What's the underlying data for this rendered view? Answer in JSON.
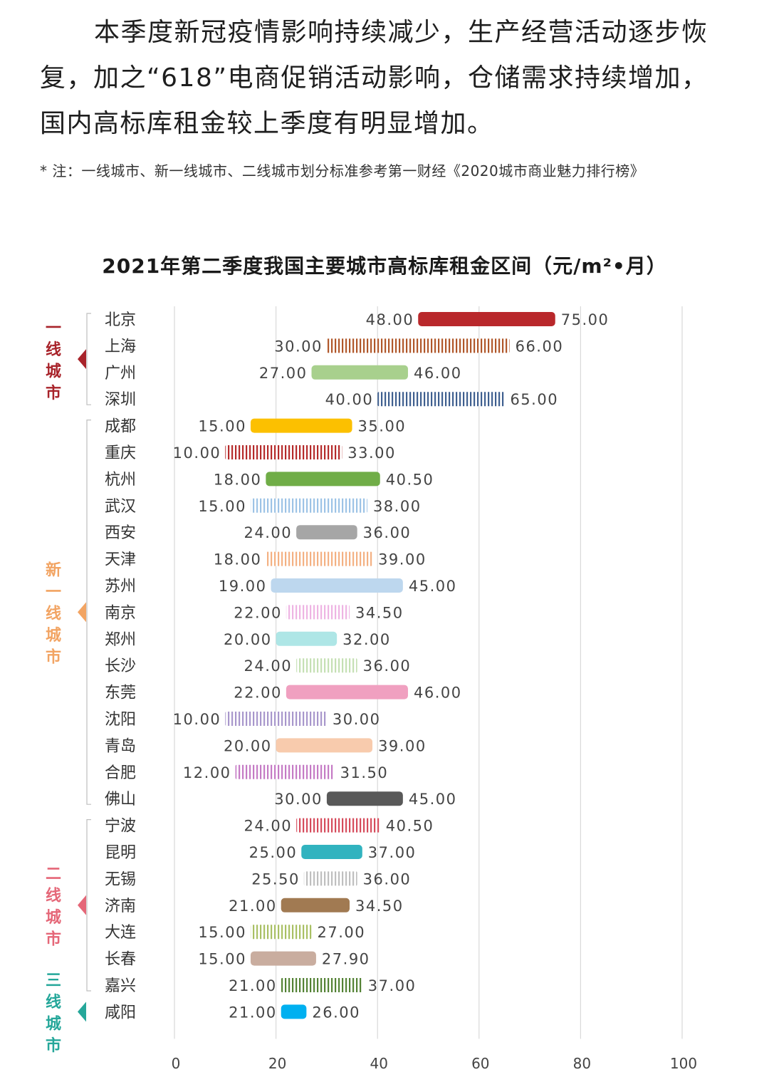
{
  "intro": {
    "paragraph": "本季度新冠疫情影响持续减少，生产经营活动逐步恢复，加之“618”电商促销活动影响，仓储需求持续增加，国内高标库租金较上季度有明显增加。",
    "note": "* 注：一线城市、新一线城市、二线城市划分标准参考第一财经《2020城市商业魅力排行榜》"
  },
  "chart_data": {
    "type": "bar",
    "subtype": "floating-range",
    "title": "2021年第二季度我国主要城市高标库租金区间（元/m²•月）",
    "xlim": [
      0,
      100
    ],
    "xticks": [
      "0",
      "20",
      "40",
      "60",
      "80",
      "100"
    ],
    "grid": true,
    "groups": [
      {
        "label": "一线城市",
        "color": "#a8232a",
        "start": 0,
        "end": 3
      },
      {
        "label": "新一线城市",
        "color": "#f2a463",
        "start": 4,
        "end": 18
      },
      {
        "label": "二线城市",
        "color": "#e56778",
        "start": 19,
        "end": 25
      },
      {
        "label": "三线城市",
        "color": "#25a79a",
        "start": 26,
        "end": 26
      }
    ],
    "cities": [
      {
        "name": "北京",
        "low": 48.0,
        "high": 75.0,
        "low_label": "48.00",
        "high_label": "75.00",
        "color": "#b9282b",
        "striped": false
      },
      {
        "name": "上海",
        "low": 30.0,
        "high": 66.0,
        "low_label": "30.00",
        "high_label": "66.00",
        "color": "#b0572a",
        "striped": true
      },
      {
        "name": "广州",
        "low": 27.0,
        "high": 46.0,
        "low_label": "27.00",
        "high_label": "46.00",
        "color": "#a8d08d",
        "striped": false
      },
      {
        "name": "深圳",
        "low": 40.0,
        "high": 65.0,
        "low_label": "40.00",
        "high_label": "65.00",
        "color": "#3f5f8f",
        "striped": true
      },
      {
        "name": "成都",
        "low": 15.0,
        "high": 35.0,
        "low_label": "15.00",
        "high_label": "35.00",
        "color": "#fcc000",
        "striped": false
      },
      {
        "name": "重庆",
        "low": 10.0,
        "high": 33.0,
        "low_label": "10.00",
        "high_label": "33.00",
        "color": "#b52b2b",
        "striped": true
      },
      {
        "name": "杭州",
        "low": 18.0,
        "high": 40.5,
        "low_label": "18.00",
        "high_label": "40.50",
        "color": "#70ad47",
        "striped": false
      },
      {
        "name": "武汉",
        "low": 15.0,
        "high": 38.0,
        "low_label": "15.00",
        "high_label": "38.00",
        "color": "#9dc3e6",
        "striped": true
      },
      {
        "name": "西安",
        "low": 24.0,
        "high": 36.0,
        "low_label": "24.00",
        "high_label": "36.00",
        "color": "#a6a6a6",
        "striped": false
      },
      {
        "name": "天津",
        "low": 18.0,
        "high": 39.0,
        "low_label": "18.00",
        "high_label": "39.00",
        "color": "#f4b183",
        "striped": true
      },
      {
        "name": "苏州",
        "low": 19.0,
        "high": 45.0,
        "low_label": "19.00",
        "high_label": "45.00",
        "color": "#bdd7ee",
        "striped": false
      },
      {
        "name": "南京",
        "low": 22.0,
        "high": 34.5,
        "low_label": "22.00",
        "high_label": "34.50",
        "color": "#eeb4e3",
        "striped": true
      },
      {
        "name": "郑州",
        "low": 20.0,
        "high": 32.0,
        "low_label": "20.00",
        "high_label": "32.00",
        "color": "#aee6e6",
        "striped": false
      },
      {
        "name": "长沙",
        "low": 24.0,
        "high": 36.0,
        "low_label": "24.00",
        "high_label": "36.00",
        "color": "#c5e0b4",
        "striped": true
      },
      {
        "name": "东莞",
        "low": 22.0,
        "high": 46.0,
        "low_label": "22.00",
        "high_label": "46.00",
        "color": "#f0a0c0",
        "striped": false
      },
      {
        "name": "沈阳",
        "low": 10.0,
        "high": 30.0,
        "low_label": "10.00",
        "high_label": "30.00",
        "color": "#a897cc",
        "striped": true
      },
      {
        "name": "青岛",
        "low": 20.0,
        "high": 39.0,
        "low_label": "20.00",
        "high_label": "39.00",
        "color": "#f8cbad",
        "striped": false
      },
      {
        "name": "合肥",
        "low": 12.0,
        "high": 31.5,
        "low_label": "12.00",
        "high_label": "31.50",
        "color": "#c57bc5",
        "striped": true
      },
      {
        "name": "佛山",
        "low": 30.0,
        "high": 45.0,
        "low_label": "30.00",
        "high_label": "45.00",
        "color": "#595959",
        "striped": false
      },
      {
        "name": "宁波",
        "low": 24.0,
        "high": 40.5,
        "low_label": "24.00",
        "high_label": "40.50",
        "color": "#d64c5c",
        "striped": true
      },
      {
        "name": "昆明",
        "low": 25.0,
        "high": 37.0,
        "low_label": "25.00",
        "high_label": "37.00",
        "color": "#31b3bf",
        "striped": false
      },
      {
        "name": "无锡",
        "low": 25.5,
        "high": 36.0,
        "low_label": "25.50",
        "high_label": "36.00",
        "color": "#bfbfbf",
        "striped": true
      },
      {
        "name": "济南",
        "low": 21.0,
        "high": 34.5,
        "low_label": "21.00",
        "high_label": "34.50",
        "color": "#a17a52",
        "striped": false
      },
      {
        "name": "大连",
        "low": 15.0,
        "high": 27.0,
        "low_label": "15.00",
        "high_label": "27.00",
        "color": "#a9c064",
        "striped": true
      },
      {
        "name": "长春",
        "low": 15.0,
        "high": 27.9,
        "low_label": "15.00",
        "high_label": "27.90",
        "color": "#c9ad9f",
        "striped": false
      },
      {
        "name": "嘉兴",
        "low": 21.0,
        "high": 37.0,
        "low_label": "21.00",
        "high_label": "37.00",
        "color": "#548235",
        "striped": true
      },
      {
        "name": "咸阳",
        "low": 21.0,
        "high": 26.0,
        "low_label": "21.00",
        "high_label": "26.00",
        "color": "#00b0f0",
        "striped": false
      }
    ]
  }
}
